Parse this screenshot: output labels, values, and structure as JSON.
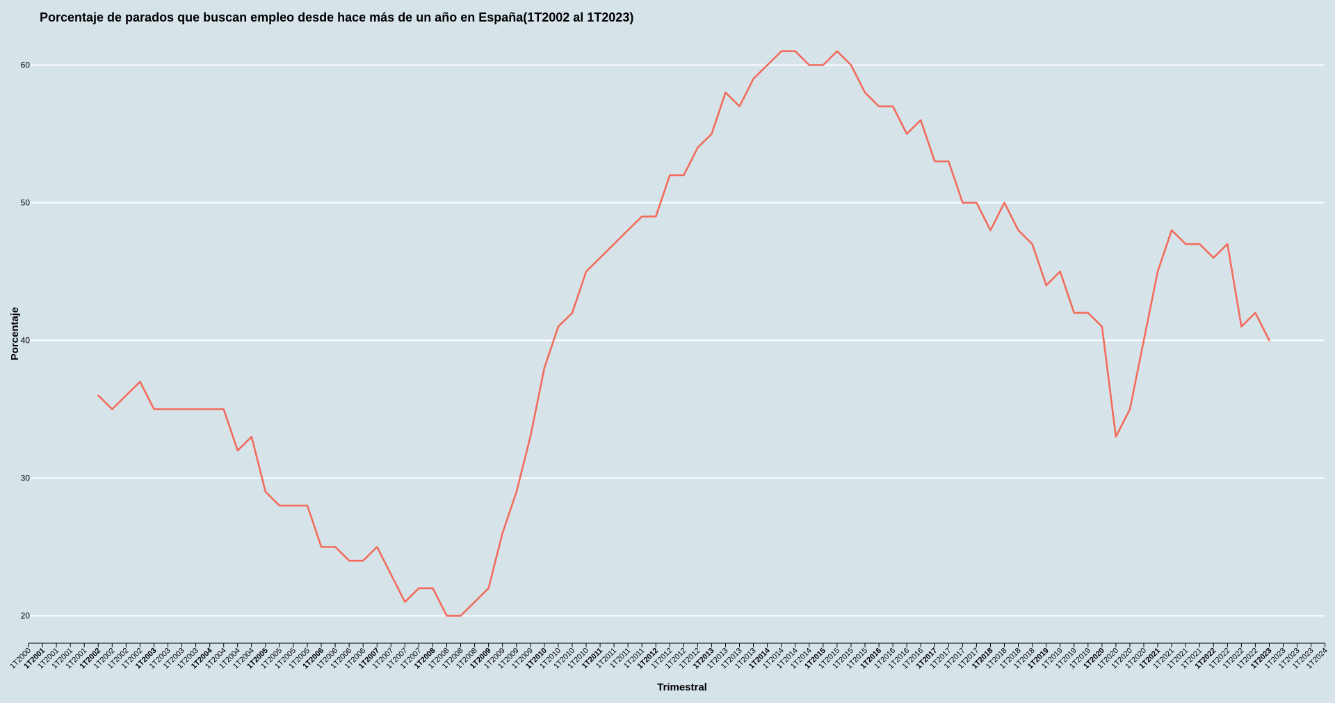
{
  "chart_data": {
    "type": "line",
    "title": "Porcentaje de parados que buscan empleo desde hace más de un año en España(1T2002 al 1T2023)",
    "xlabel": "Trimestral",
    "ylabel": "Porcentaje",
    "ylim": [
      18,
      63
    ],
    "yticks": [
      20,
      30,
      40,
      50,
      60
    ],
    "grid": true,
    "line_color": "#f26b5b",
    "background": "#d6e4ea",
    "x_categories": [
      "1T2000",
      "1T2001",
      "1T2001",
      "1T2001",
      "1T2001",
      "1T2002",
      "1T2002",
      "1T2002",
      "1T2002",
      "1T2003",
      "1T2003",
      "1T2003",
      "1T2003",
      "1T2004",
      "1T2004",
      "1T2004",
      "1T2004",
      "1T2005",
      "1T2005",
      "1T2005",
      "1T2005",
      "1T2006",
      "1T2006",
      "1T2006",
      "1T2006",
      "1T2007",
      "1T2007",
      "1T2007",
      "1T2007",
      "1T2008",
      "1T2008",
      "1T2008",
      "1T2008",
      "1T2009",
      "1T2009",
      "1T2009",
      "1T2009",
      "1T2010",
      "1T2010",
      "1T2010",
      "1T2010",
      "1T2011",
      "1T2011",
      "1T2011",
      "1T2011",
      "1T2012",
      "1T2012",
      "1T2012",
      "1T2012",
      "1T2013",
      "1T2013",
      "1T2013",
      "1T2013",
      "1T2014",
      "1T2014",
      "1T2014",
      "1T2014",
      "1T2015",
      "1T2015",
      "1T2015",
      "1T2015",
      "1T2016",
      "1T2016",
      "1T2016",
      "1T2016",
      "1T2017",
      "1T2017",
      "1T2017",
      "1T2017",
      "1T2018",
      "1T2018",
      "1T2018",
      "1T2018",
      "1T2019",
      "1T2019",
      "1T2019",
      "1T2019",
      "1T2020",
      "1T2020",
      "1T2020",
      "1T2020",
      "1T2021",
      "1T2021",
      "1T2021",
      "1T2021",
      "1T2022",
      "1T2022",
      "1T2022",
      "1T2022",
      "1T2023",
      "1T2023",
      "1T2023",
      "1T2023",
      "1T2024"
    ],
    "major_tick_indices": [
      1,
      5,
      9,
      13,
      17,
      21,
      25,
      29,
      33,
      37,
      41,
      45,
      49,
      53,
      57,
      61,
      65,
      69,
      73,
      77,
      81,
      85,
      89
    ],
    "series": [
      {
        "x_start_index": 5,
        "values": [
          36,
          35,
          36,
          37,
          35,
          35,
          35,
          35,
          35,
          35,
          32,
          33,
          29,
          28,
          28,
          28,
          25,
          25,
          24,
          24,
          25,
          23,
          21,
          22,
          22,
          20,
          20,
          21,
          22,
          26,
          29,
          33,
          38,
          41,
          42,
          45,
          46,
          47,
          48,
          49,
          49,
          52,
          52,
          54,
          55,
          58,
          57,
          59,
          60,
          61,
          61,
          60,
          60,
          61,
          60,
          58,
          57,
          57,
          55,
          56,
          53,
          53,
          50,
          50,
          48,
          50,
          48,
          47,
          44,
          45,
          42,
          42,
          41,
          33,
          35,
          40,
          45,
          48,
          47,
          47,
          46,
          47,
          41,
          42,
          40
        ]
      }
    ]
  }
}
